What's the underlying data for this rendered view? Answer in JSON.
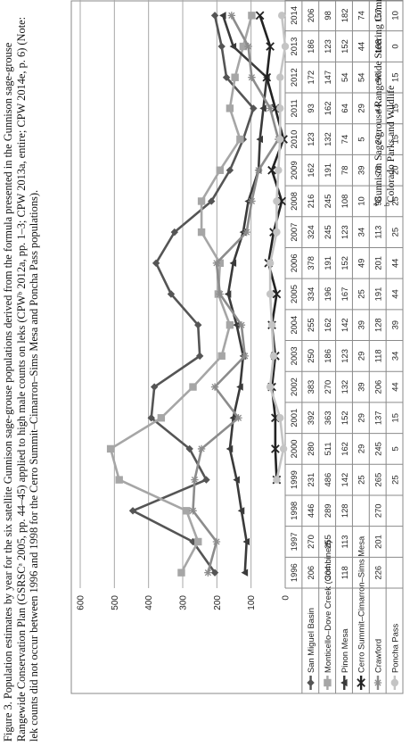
{
  "caption": {
    "text": "Figure 3. Population estimates by year for the six satellite Gunnison sage-grouse populations derived from the formula presented in the Gunnison sage-grouse Rangewide Conservation Plan (GSRSCᵃ 2005, pp. 44–45) applied to high male counts on leks (CPWᵇ 2012a, pp. 1–3; CPW 2013a, entire; CPW 2014e, p. 6) (Note: lek counts did not occur between 1996 and 1998 for the Cerro Summit–Cimarron–Sims Mesa and Poncha Pass populations)."
  },
  "footnotes": {
    "a_marker": "a",
    "a_text": "Gunnison Sage-grouse Rangewide Steering Committee",
    "b_marker": "b",
    "b_text": "Colorado Parks and Wildlife"
  },
  "chart_data": {
    "type": "line",
    "title": "",
    "xlabel": "",
    "ylabel": "",
    "ylim": [
      0,
      600
    ],
    "yticks": [
      "0",
      "100",
      "200",
      "300",
      "400",
      "500",
      "600"
    ],
    "grid": true,
    "legend": "data table rows with series markers",
    "categories": [
      "1996",
      "1997",
      "1998",
      "1999",
      "2000",
      "2001",
      "2002",
      "2003",
      "2004",
      "2005",
      "2006",
      "2007",
      "2008",
      "2009",
      "2010",
      "2011",
      "2012",
      "2013",
      "2014"
    ],
    "series": [
      {
        "name": "San Miguel Basin",
        "color": "#555555",
        "marker": "diamond",
        "values": [
          206,
          270,
          446,
          231,
          280,
          392,
          383,
          250,
          255,
          334,
          378,
          324,
          216,
          162,
          123,
          93,
          172,
          186,
          206
        ],
        "labels": [
          "206",
          "270",
          "446",
          "231",
          "280",
          "392",
          "383",
          "250",
          "255",
          "334",
          "378",
          "324",
          "216",
          "162",
          "123",
          "93",
          "172",
          "186",
          "206"
        ]
      },
      {
        "name": "Monticello–Dove Creek (Combined)",
        "color": "#a6a6a6",
        "marker": "square",
        "values": [
          304,
          255,
          289,
          486,
          511,
          363,
          270,
          186,
          162,
          196,
          191,
          245,
          245,
          191,
          132,
          162,
          147,
          123,
          98
        ],
        "labels": [
          "304",
          "255",
          "289",
          "486",
          "511",
          "363",
          "270",
          "186",
          "162",
          "196",
          "191",
          "245",
          "245",
          "191",
          "132",
          "162",
          "147",
          "123",
          "98"
        ]
      },
      {
        "name": "Pinon Mesa",
        "color": "#3a3a3a",
        "marker": "triangle",
        "values": [
          118,
          113,
          128,
          142,
          162,
          152,
          132,
          123,
          142,
          167,
          152,
          123,
          108,
          78,
          74,
          64,
          54,
          152,
          182
        ],
        "labels": [
          "118",
          "113",
          "128",
          "142",
          "162",
          "152",
          "132",
          "123",
          "142",
          "167",
          "152",
          "123",
          "108",
          "78",
          "74",
          "64",
          "54",
          "152",
          "182"
        ]
      },
      {
        "name": "Cerro Summit–Cimarron–Sims Mesa",
        "color": "#222222",
        "marker": "x",
        "values": [
          null,
          null,
          null,
          25,
          29,
          29,
          39,
          29,
          39,
          25,
          49,
          34,
          10,
          39,
          5,
          29,
          54,
          44,
          74
        ],
        "labels": [
          "",
          "",
          "",
          "25",
          "29",
          "29",
          "39",
          "29",
          "39",
          "25",
          "49",
          "34",
          "10",
          "39",
          "5",
          "29",
          "54",
          "44",
          "74"
        ]
      },
      {
        "name": "Crawford",
        "color": "#8c8c8c",
        "marker": "star",
        "values": [
          226,
          201,
          270,
          265,
          245,
          137,
          206,
          118,
          128,
          191,
          201,
          113,
          98,
          78,
          20,
          44,
          98,
          108,
          157
        ],
        "labels": [
          "226",
          "201",
          "270",
          "265",
          "245",
          "137",
          "206",
          "118",
          "128",
          "191",
          "201",
          "113",
          "98",
          "78",
          "20",
          "44",
          "98",
          "108",
          "157"
        ]
      },
      {
        "name": "Poncha Pass",
        "color": "#c4c4c4",
        "marker": "circle",
        "values": [
          null,
          null,
          null,
          25,
          5,
          15,
          44,
          34,
          39,
          44,
          44,
          25,
          25,
          20,
          15,
          15,
          15,
          0,
          10
        ],
        "labels": [
          "",
          "",
          "",
          "25",
          "5",
          "15",
          "44",
          "34",
          "39",
          "44",
          "44",
          "25",
          "25",
          "20",
          "15",
          "15",
          "15",
          "0",
          "10"
        ]
      }
    ]
  }
}
